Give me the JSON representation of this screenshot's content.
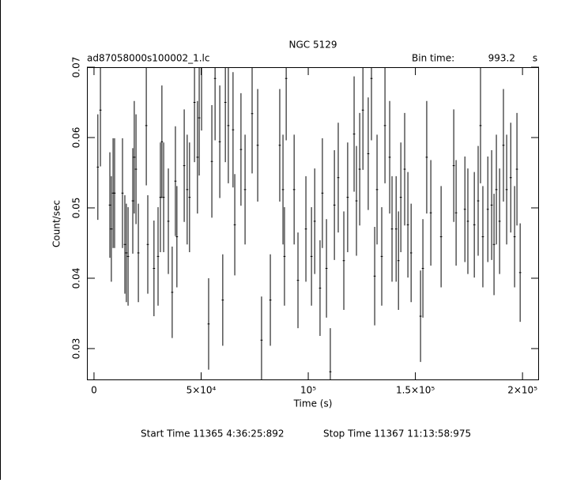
{
  "chart_data": {
    "type": "errorbar",
    "title": "NGC 5129",
    "file_name": "ad87058000s100002_1.lc",
    "bin_time_label": "Bin time:",
    "bin_time": 993.2,
    "bin_time_unit": "s",
    "x_label": "Time (s)",
    "y_label": "Count/sec",
    "start_time": "Start Time 11365  4:36:25:892",
    "stop_time": "Stop Time 11367 11:13:58:975",
    "xlim": [
      -3300,
      207700
    ],
    "ylim": [
      0.0255,
      0.07
    ],
    "xticks": [
      0,
      {
        "value": 50000,
        "label": "5×10⁴"
      },
      {
        "value": 100000,
        "label": "10⁵"
      },
      {
        "value": 150000,
        "label": "1.5×10⁵"
      },
      {
        "value": 200000,
        "label": "2×10⁵"
      }
    ],
    "yticks": [
      0.03,
      0.04,
      0.05,
      0.06,
      0.07
    ],
    "x": [
      1800,
      3000,
      7400,
      8100,
      8900,
      9600,
      13300,
      14400,
      15100,
      15900,
      18100,
      18800,
      19600,
      20700,
      24400,
      25100,
      28000,
      29900,
      31000,
      31700,
      32500,
      34700,
      36500,
      38000,
      38700,
      42100,
      43500,
      44600,
      46900,
      48300,
      49100,
      50200,
      53500,
      55000,
      56500,
      58700,
      60100,
      61300,
      62700,
      64900,
      65700,
      68600,
      70500,
      73800,
      76400,
      78200,
      82300,
      86700,
      88200,
      88900,
      89700,
      93400,
      95200,
      98900,
      101500,
      103000,
      105500,
      106600,
      108500,
      110300,
      112200,
      114000,
      116600,
      118400,
      121400,
      122500,
      124000,
      125500,
      128000,
      129500,
      131000,
      132100,
      134300,
      135800,
      138000,
      139100,
      141000,
      142100,
      143200,
      145000,
      146500,
      148000,
      152400,
      153500,
      155300,
      157200,
      162000,
      167900,
      169000,
      173100,
      174500,
      177500,
      179300,
      180400,
      181500,
      183800,
      185600,
      186700,
      187800,
      189300,
      191100,
      192600,
      194500,
      196300,
      197400,
      198900
    ],
    "series": [
      {
        "color": "#000000",
        "values": [
          0.0558,
          0.0639,
          0.0504,
          0.047,
          0.0521,
          0.0521,
          0.0521,
          0.0448,
          0.0436,
          0.0431,
          0.051,
          0.0572,
          0.0555,
          0.0436,
          0.0617,
          0.0448,
          0.0414,
          0.0431,
          0.0515,
          0.0594,
          0.0515,
          0.0481,
          0.038,
          0.0538,
          0.0459,
          0.056,
          0.0526,
          0.0515,
          0.065,
          0.0572,
          0.0628,
          0.07,
          0.0335,
          0.0566,
          0.0684,
          0.0594,
          0.0369,
          0.065,
          0.0617,
          0.0611,
          0.0476,
          0.0583,
          0.0526,
          0.0634,
          0.0589,
          0.0312,
          0.0369,
          0.0589,
          0.0526,
          0.0431,
          0.0684,
          0.0526,
          0.0397,
          0.047,
          0.0431,
          0.0481,
          0.0386,
          0.0521,
          0.0414,
          0.0267,
          0.0504,
          0.0543,
          0.0425,
          0.0515,
          0.0605,
          0.051,
          0.0555,
          0.0639,
          0.0577,
          0.0684,
          0.0403,
          0.0526,
          0.0431,
          0.0617,
          0.0572,
          0.047,
          0.047,
          0.0425,
          0.0515,
          0.0555,
          0.0476,
          0.0436,
          0.0346,
          0.0414,
          0.0572,
          0.0493,
          0.0459,
          0.056,
          0.0493,
          0.0498,
          0.0481,
          0.0476,
          0.051,
          0.0617,
          0.0459,
          0.0498,
          0.0504,
          0.0448,
          0.0526,
          0.0481,
          0.0589,
          0.0526,
          0.0543,
          0.0459,
          0.0555,
          0.0408
        ],
        "errors": [
          0.0075,
          0.008,
          0.0075,
          0.0075,
          0.0078,
          0.0078,
          0.0078,
          0.007,
          0.007,
          0.007,
          0.0075,
          0.008,
          0.0078,
          0.007,
          0.0085,
          0.007,
          0.0068,
          0.007,
          0.0078,
          0.008,
          0.0078,
          0.0075,
          0.0065,
          0.0078,
          0.0072,
          0.008,
          0.0078,
          0.0078,
          0.0085,
          0.008,
          0.0082,
          0.009,
          0.0065,
          0.008,
          0.0088,
          0.008,
          0.0065,
          0.0085,
          0.0082,
          0.0082,
          0.0072,
          0.008,
          0.0078,
          0.0085,
          0.008,
          0.0062,
          0.0065,
          0.008,
          0.0078,
          0.007,
          0.0088,
          0.0078,
          0.0068,
          0.0075,
          0.007,
          0.0075,
          0.0068,
          0.0078,
          0.007,
          0.0062,
          0.0078,
          0.0078,
          0.007,
          0.0078,
          0.0082,
          0.0078,
          0.008,
          0.0085,
          0.008,
          0.0088,
          0.007,
          0.0078,
          0.007,
          0.0082,
          0.008,
          0.0075,
          0.0075,
          0.007,
          0.0078,
          0.008,
          0.0075,
          0.007,
          0.0065,
          0.007,
          0.008,
          0.0075,
          0.0072,
          0.008,
          0.0075,
          0.0075,
          0.0075,
          0.0075,
          0.0078,
          0.0082,
          0.0072,
          0.0075,
          0.0078,
          0.0072,
          0.0078,
          0.0075,
          0.008,
          0.0078,
          0.0078,
          0.0072,
          0.008,
          0.007
        ]
      }
    ]
  }
}
